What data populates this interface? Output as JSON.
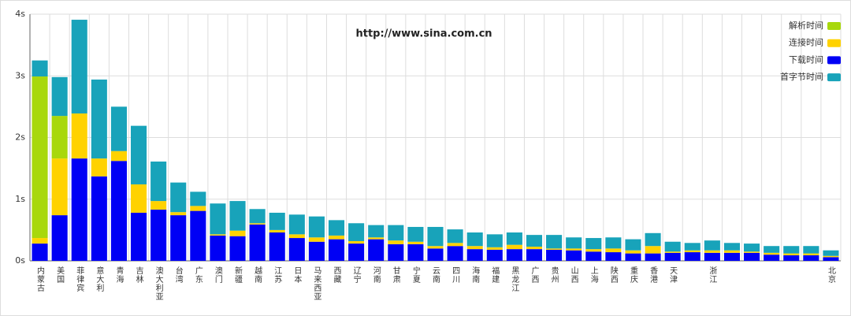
{
  "chart_data": {
    "type": "bar",
    "stacked": true,
    "annotation": "http://www.sina.com.cn",
    "categories": [
      "内蒙古",
      "美国",
      "菲律宾",
      "意大利",
      "青海",
      "吉林",
      "澳大利亚",
      "台湾",
      "广东",
      "澳门",
      "新疆",
      "越南",
      "江苏",
      "日本",
      "马来西亚",
      "西藏",
      "辽宁",
      "河南",
      "甘肃",
      "宁夏",
      "云南",
      "四川",
      "海南",
      "福建",
      "黑龙江",
      "广西",
      "贵州",
      "山西",
      "上海",
      "陕西",
      "重庆",
      "香港",
      "天津",
      null,
      "浙江",
      null,
      null,
      null,
      null,
      null,
      "北京"
    ],
    "series": [
      {
        "name": "解析时间",
        "color": "#a8d80c",
        "values": [
          2.62,
          0.69,
          0,
          0,
          0,
          0,
          0,
          0,
          0,
          0,
          0,
          0,
          0,
          0,
          0,
          0,
          0,
          0,
          0,
          0,
          0,
          0,
          0,
          0,
          0,
          0,
          0,
          0,
          0,
          0,
          0,
          0,
          0,
          0,
          0,
          0,
          0,
          0,
          0,
          0,
          0
        ]
      },
      {
        "name": "连接时间",
        "color": "#ffd200",
        "values": [
          0.09,
          0.92,
          0.73,
          0.29,
          0.16,
          0.46,
          0.14,
          0.05,
          0.08,
          0.02,
          0.09,
          0.02,
          0.04,
          0.06,
          0.07,
          0.06,
          0.04,
          0.03,
          0.06,
          0.04,
          0.04,
          0.05,
          0.05,
          0.04,
          0.07,
          0.04,
          0.02,
          0.03,
          0.04,
          0.06,
          0.05,
          0.12,
          0.02,
          0.03,
          0.04,
          0.04,
          0.02,
          0.03,
          0.03,
          0.03,
          0.02
        ]
      },
      {
        "name": "下载时间",
        "color": "#0000f5",
        "values": [
          0.28,
          0.74,
          1.66,
          1.37,
          1.62,
          0.78,
          0.83,
          0.74,
          0.81,
          0.41,
          0.4,
          0.59,
          0.46,
          0.37,
          0.31,
          0.35,
          0.28,
          0.35,
          0.27,
          0.27,
          0.2,
          0.24,
          0.19,
          0.18,
          0.19,
          0.19,
          0.18,
          0.17,
          0.15,
          0.14,
          0.12,
          0.12,
          0.13,
          0.14,
          0.13,
          0.13,
          0.13,
          0.1,
          0.09,
          0.09,
          0.06
        ]
      },
      {
        "name": "首字节时间",
        "color": "#18a3ba",
        "values": [
          0.26,
          0.63,
          1.52,
          1.28,
          0.72,
          0.95,
          0.64,
          0.48,
          0.23,
          0.5,
          0.48,
          0.23,
          0.28,
          0.32,
          0.34,
          0.25,
          0.29,
          0.2,
          0.25,
          0.24,
          0.31,
          0.22,
          0.22,
          0.21,
          0.2,
          0.19,
          0.22,
          0.18,
          0.18,
          0.18,
          0.18,
          0.21,
          0.16,
          0.12,
          0.16,
          0.12,
          0.13,
          0.11,
          0.12,
          0.12,
          0.09
        ]
      }
    ],
    "ylim": [
      0,
      4
    ],
    "yticks": [
      {
        "value": 0,
        "label": "0s"
      },
      {
        "value": 1,
        "label": "1s"
      },
      {
        "value": 2,
        "label": "2s"
      },
      {
        "value": 3,
        "label": "3s"
      },
      {
        "value": 4,
        "label": "4s"
      }
    ],
    "grid": true,
    "legend": "top-right"
  }
}
